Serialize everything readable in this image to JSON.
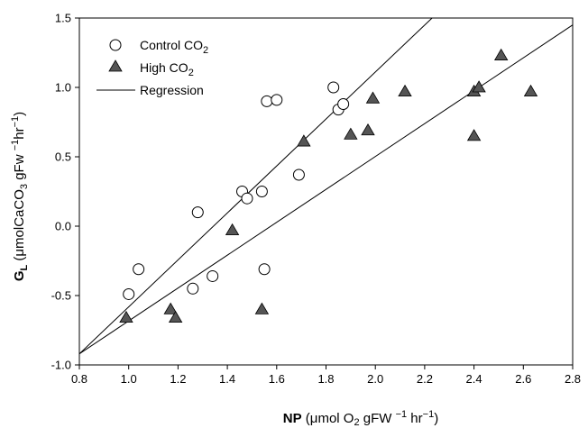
{
  "chart_data": {
    "type": "scatter",
    "xlim": [
      0.8,
      2.8
    ],
    "ylim": [
      -1.0,
      1.5
    ],
    "x_ticks": [
      0.8,
      1.0,
      1.2,
      1.4,
      1.6,
      1.8,
      2.0,
      2.2,
      2.4,
      2.6,
      2.8
    ],
    "y_ticks": [
      -1.0,
      -0.5,
      0.0,
      0.5,
      1.0,
      1.5
    ],
    "x_tick_labels": [
      "0.8",
      "1.0",
      "1.2",
      "1.4",
      "1.6",
      "1.8",
      "2.0",
      "2.2",
      "2.4",
      "2.6",
      "2.8"
    ],
    "y_tick_labels": [
      "-1.0",
      "-0.5",
      "0.0",
      "0.5",
      "1.0",
      "1.5"
    ],
    "xlabel": {
      "bold": "NP",
      "rest": " (μmol O",
      "sub1": "2",
      "mid": " gFW ",
      "sup1": "−1",
      "tail": " hr",
      "sup2": "−1",
      "end": ")"
    },
    "ylabel": {
      "main": "G",
      "sub": "L",
      "rest": " (μmolCaCO",
      "sub2": "3",
      "mid": " gFw ",
      "sup1": "−1",
      "mid2": "hr",
      "sup2": "−1",
      "end": ")"
    },
    "legend": {
      "position": "top-left",
      "entries": [
        {
          "marker": "open-circle",
          "label": "Control CO",
          "sub": "2"
        },
        {
          "marker": "filled-triangle",
          "label": "High CO",
          "sub": "2"
        },
        {
          "marker": "line",
          "label": "Regression",
          "sub": ""
        }
      ]
    },
    "series": [
      {
        "marker": "open-circle",
        "points": [
          [
            1.0,
            -0.49
          ],
          [
            1.04,
            -0.31
          ],
          [
            1.26,
            -0.45
          ],
          [
            1.28,
            0.1
          ],
          [
            1.34,
            -0.36
          ],
          [
            1.46,
            0.25
          ],
          [
            1.48,
            0.2
          ],
          [
            1.54,
            0.25
          ],
          [
            1.55,
            -0.31
          ],
          [
            1.56,
            0.9
          ],
          [
            1.6,
            0.91
          ],
          [
            1.69,
            0.37
          ],
          [
            1.83,
            1.0
          ],
          [
            1.85,
            0.84
          ],
          [
            1.87,
            0.88
          ]
        ]
      },
      {
        "marker": "filled-triangle",
        "points": [
          [
            0.99,
            -0.66
          ],
          [
            1.17,
            -0.6
          ],
          [
            1.19,
            -0.66
          ],
          [
            1.42,
            -0.03
          ],
          [
            1.54,
            -0.6
          ],
          [
            1.71,
            0.61
          ],
          [
            1.9,
            0.66
          ],
          [
            1.97,
            0.69
          ],
          [
            1.99,
            0.92
          ],
          [
            2.12,
            0.97
          ],
          [
            2.4,
            0.65
          ],
          [
            2.4,
            0.97
          ],
          [
            2.42,
            1.0
          ],
          [
            2.51,
            1.23
          ],
          [
            2.63,
            0.97
          ]
        ]
      }
    ],
    "regression_lines": [
      {
        "x0": 0.8,
        "y0": -0.92,
        "x1": 2.23,
        "y1": 1.5
      },
      {
        "x0": 0.8,
        "y0": -0.92,
        "x1": 2.8,
        "y1": 1.45
      }
    ],
    "colors": {
      "triangle_fill": "#555555",
      "stroke": "#000000"
    }
  }
}
